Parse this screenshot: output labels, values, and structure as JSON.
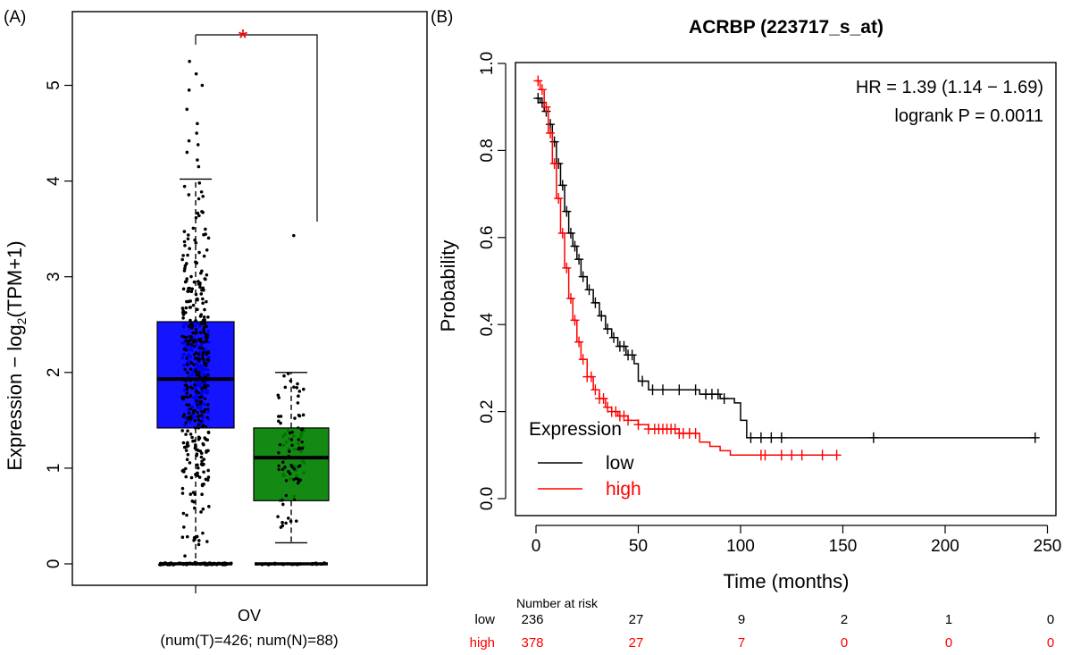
{
  "panel_a": {
    "label": "(A)",
    "ylabel_main": "Expression − log",
    "ylabel_sub": "2",
    "ylabel_end": "(TPM+1)",
    "xlabel": "OV",
    "sample_note": "(num(T)=426; num(N)=88)",
    "significance": "*",
    "colors": {
      "tumor": "#0000ff",
      "normal": "#008000",
      "star": "#ff0000"
    }
  },
  "panel_b": {
    "label": "(B)",
    "title": "ACRBP (223717_s_at)",
    "ylabel": "Probability",
    "xlabel": "Time (months)",
    "hr_text": "HR = 1.39 (1.14 − 1.69)",
    "logrank_text": "logrank P = 0.0011",
    "legend_title": "Expression",
    "risk_header": "Number at risk",
    "colors": {
      "low": "#000000",
      "high": "#ff0000"
    }
  },
  "chart_data": [
    {
      "type": "box",
      "ylabel": "Expression − log2(TPM+1)",
      "xlabel": "OV",
      "ylim": [
        0,
        5.4
      ],
      "yticks": [
        "0",
        "1",
        "2",
        "3",
        "4",
        "5"
      ],
      "groups": [
        {
          "name": "T",
          "n": 426,
          "color": "#0000ff",
          "min": 0,
          "q1": 1.42,
          "median": 1.93,
          "q3": 2.53,
          "whisker_low": 0,
          "whisker_high": 4.02,
          "max_point": 5.25
        },
        {
          "name": "N",
          "n": 88,
          "color": "#008000",
          "min": 0,
          "q1": 0.66,
          "median": 1.11,
          "q3": 1.42,
          "whisker_low": 0.22,
          "whisker_high": 2.0,
          "max_point": 3.43
        }
      ],
      "significance": "*"
    },
    {
      "type": "line",
      "title": "ACRBP (223717_s_at)",
      "xlabel": "Time (months)",
      "ylabel": "Probability",
      "xlim": [
        0,
        250
      ],
      "ylim": [
        0,
        1
      ],
      "xticks": [
        "0",
        "50",
        "100",
        "150",
        "200",
        "250"
      ],
      "yticks": [
        "0.0",
        "0.2",
        "0.4",
        "0.6",
        "0.8",
        "1.0"
      ],
      "series": [
        {
          "name": "low",
          "color": "#000000",
          "x": [
            0,
            2,
            4,
            6,
            8,
            10,
            12,
            14,
            16,
            18,
            20,
            22,
            25,
            28,
            31,
            34,
            37,
            40,
            44,
            48,
            50,
            55,
            60,
            70,
            80,
            90,
            97,
            100,
            103,
            110,
            120,
            160,
            200,
            244
          ],
          "y": [
            0.92,
            0.91,
            0.89,
            0.86,
            0.82,
            0.77,
            0.72,
            0.66,
            0.61,
            0.58,
            0.55,
            0.51,
            0.48,
            0.45,
            0.42,
            0.39,
            0.37,
            0.35,
            0.33,
            0.31,
            0.27,
            0.25,
            0.25,
            0.25,
            0.24,
            0.23,
            0.22,
            0.18,
            0.14,
            0.14,
            0.14,
            0.14,
            0.14,
            0.14
          ],
          "censor_x": [
            1,
            3,
            5,
            7,
            9,
            11,
            13,
            15,
            17,
            19,
            21,
            23,
            26,
            29,
            32,
            35,
            38,
            41,
            43,
            45,
            47,
            52,
            57,
            62,
            70,
            78,
            83,
            86,
            89,
            92,
            105,
            110,
            115,
            120,
            165,
            244
          ]
        },
        {
          "name": "high",
          "color": "#ff0000",
          "x": [
            0,
            2,
            4,
            6,
            8,
            10,
            12,
            14,
            16,
            18,
            20,
            22,
            25,
            28,
            31,
            34,
            37,
            40,
            45,
            50,
            55,
            60,
            70,
            80,
            85,
            90,
            95,
            100,
            110,
            120,
            130,
            147
          ],
          "y": [
            0.96,
            0.94,
            0.9,
            0.84,
            0.77,
            0.69,
            0.61,
            0.53,
            0.46,
            0.41,
            0.36,
            0.32,
            0.28,
            0.25,
            0.23,
            0.21,
            0.2,
            0.19,
            0.18,
            0.17,
            0.16,
            0.16,
            0.15,
            0.13,
            0.12,
            0.11,
            0.1,
            0.1,
            0.1,
            0.1,
            0.1,
            0.1
          ],
          "censor_x": [
            1,
            3,
            5,
            7,
            9,
            11,
            13,
            15,
            17,
            19,
            21,
            23,
            25,
            27,
            29,
            31,
            33,
            35,
            37,
            39,
            41,
            43,
            45,
            50,
            55,
            58,
            60,
            62,
            64,
            66,
            68,
            70,
            72,
            75,
            78,
            110,
            112,
            120,
            125,
            130,
            140,
            147
          ]
        }
      ],
      "annotations": [
        "HR = 1.39 (1.14 − 1.69)",
        "logrank P = 0.0011"
      ],
      "legend": {
        "title": "Expression",
        "placement": "bottom-left",
        "entries": [
          "low",
          "high"
        ]
      },
      "risk_table": {
        "header": "Number at risk",
        "times": [
          "0",
          "50",
          "100",
          "150",
          "200",
          "250"
        ],
        "rows": [
          {
            "label": "low",
            "color": "#000000",
            "values": [
              "236",
              "27",
              "9",
              "2",
              "1",
              "0"
            ]
          },
          {
            "label": "high",
            "color": "#ff0000",
            "values": [
              "378",
              "27",
              "7",
              "0",
              "0",
              "0"
            ]
          }
        ]
      }
    }
  ]
}
